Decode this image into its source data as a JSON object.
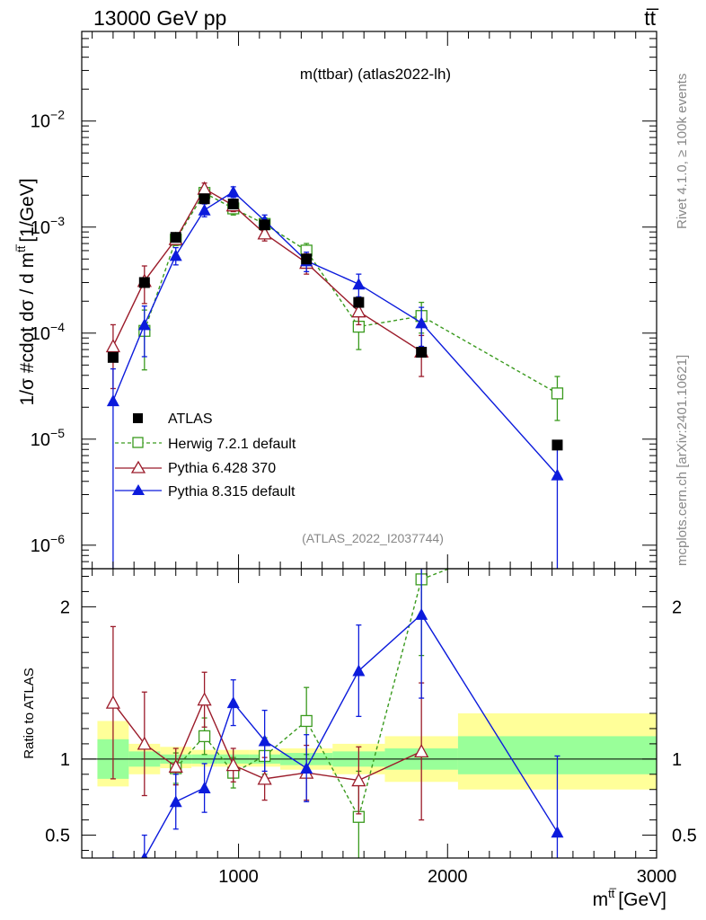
{
  "header": {
    "energy_label": "13000 GeV pp",
    "process_label": "tt̅"
  },
  "side_text": {
    "rivet": "Rivet 4.1.0, ≥ 100k events",
    "mcplots": "mcplots.cern.ch [arXiv:2401.10621]"
  },
  "chart_data": {
    "type": "line",
    "title": "m(ttbar) (atlas2022-lh)",
    "watermark": "(ATLAS_2022_I2037744)",
    "xlabel": "m",
    "xlabel_sup": "tt̅",
    "xlabel_unit": "[GeV]",
    "ylabel": "1/σ #cdot dσ / d m",
    "ylabel_sup": "tt̅",
    "ylabel_unit": "[1/GeV]",
    "ratio_ylabel": "Ratio to ATLAS",
    "xlim": [
      250,
      3000
    ],
    "ylim": [
      6e-07,
      0.07
    ],
    "ratio_ylim": [
      0.35,
      2.25
    ],
    "x_ticks": [
      1000,
      2000,
      3000
    ],
    "x_tick_labels": [
      "1000",
      "2000",
      "3000"
    ],
    "y_ticks": [
      1e-06,
      1e-05,
      0.0001,
      0.001,
      0.01
    ],
    "y_tick_mantissa": [
      "10",
      "10",
      "10",
      "10",
      "10"
    ],
    "y_tick_exponent": [
      "−6",
      "−5",
      "−4",
      "−3",
      "−2"
    ],
    "ratio_ticks": [
      0.5,
      1,
      2
    ],
    "ratio_tick_labels": [
      "0.5",
      "1",
      "2"
    ],
    "bins": [
      [
        325,
        475
      ],
      [
        475,
        625
      ],
      [
        625,
        775
      ],
      [
        775,
        900
      ],
      [
        900,
        1050
      ],
      [
        1050,
        1200
      ],
      [
        1200,
        1450
      ],
      [
        1450,
        1700
      ],
      [
        1700,
        2050
      ],
      [
        2050,
        3000
      ]
    ],
    "x": [
      400,
      550,
      700,
      837,
      975,
      1125,
      1325,
      1575,
      1875,
      2525
    ],
    "band_inner": [
      [
        0.87,
        1.13
      ],
      [
        0.95,
        1.05
      ],
      [
        0.97,
        1.03
      ],
      [
        0.97,
        1.03
      ],
      [
        0.97,
        1.03
      ],
      [
        0.97,
        1.03
      ],
      [
        0.96,
        1.04
      ],
      [
        0.95,
        1.05
      ],
      [
        0.93,
        1.07
      ],
      [
        0.9,
        1.15
      ]
    ],
    "band_outer": [
      [
        0.82,
        1.25
      ],
      [
        0.9,
        1.1
      ],
      [
        0.94,
        1.08
      ],
      [
        0.95,
        1.06
      ],
      [
        0.95,
        1.06
      ],
      [
        0.95,
        1.06
      ],
      [
        0.93,
        1.07
      ],
      [
        0.9,
        1.1
      ],
      [
        0.85,
        1.15
      ],
      [
        0.8,
        1.3
      ]
    ],
    "series": [
      {
        "name": "ATLAS",
        "color": "#000000",
        "marker": "square-filled",
        "style": "none",
        "values": [
          5.9e-05,
          0.0003,
          0.0008,
          0.00185,
          0.00165,
          0.00105,
          0.0005,
          0.000195,
          6.6e-05,
          8.8e-06
        ]
      },
      {
        "name": "Herwig 7.2.1 default",
        "color": "#3a9a1e",
        "marker": "square-open",
        "style": "dashed",
        "values": [
          null,
          0.000105,
          0.00076,
          0.0021,
          0.0015,
          0.00107,
          0.0006,
          0.000115,
          0.000145,
          2.7e-05
        ],
        "err_lo": [
          null,
          6e-05,
          9e-05,
          0.00025,
          0.0002,
          0.00015,
          0.0001,
          4.5e-05,
          4.5e-05,
          1.2e-05
        ],
        "err_hi": [
          null,
          6e-05,
          9e-05,
          0.00025,
          0.0002,
          0.00015,
          0.0001,
          4.5e-05,
          5e-05,
          1.2e-05
        ],
        "ratio": [
          null,
          null,
          0.94,
          1.15,
          0.91,
          1.02,
          1.25,
          0.62,
          2.18,
          null
        ],
        "ratio_err": [
          null,
          null,
          0.1,
          0.12,
          0.1,
          0.12,
          0.22,
          0.3,
          0.5,
          null
        ]
      },
      {
        "name": "Pythia 6.428 370",
        "color": "#9b1b2a",
        "marker": "triangle-open",
        "style": "solid",
        "values": [
          7.5e-05,
          0.00031,
          0.00077,
          0.0023,
          0.0016,
          0.00087,
          0.00046,
          0.00016,
          6.7e-05,
          null
        ],
        "err_lo": [
          4.5e-05,
          0.00012,
          8e-05,
          0.0003,
          0.0002,
          0.00013,
          0.0001,
          4e-05,
          2.8e-05,
          null
        ],
        "err_hi": [
          4.5e-05,
          0.00012,
          8e-05,
          0.0003,
          0.0002,
          0.00013,
          0.0001,
          4e-05,
          2.8e-05,
          null
        ],
        "ratio": [
          1.37,
          1.1,
          0.95,
          1.39,
          0.96,
          0.87,
          0.91,
          0.86,
          1.05,
          null
        ],
        "ratio_err": [
          0.5,
          0.34,
          0.12,
          0.18,
          0.11,
          0.14,
          0.18,
          0.22,
          0.45,
          null
        ]
      },
      {
        "name": "Pythia 8.315 default",
        "color": "#0c1bdc",
        "marker": "triangle-filled",
        "style": "solid",
        "values": [
          2.3e-05,
          0.00012,
          0.00054,
          0.00145,
          0.00215,
          0.00115,
          0.00048,
          0.00029,
          0.000125,
          4.6e-06
        ],
        "err_lo": [
          2.3e-05,
          6e-05,
          0.0001,
          0.0002,
          0.00025,
          0.00015,
          0.0001,
          7e-05,
          5e-05,
          4.6e-06
        ],
        "err_hi": [
          2.3e-05,
          6e-05,
          0.0001,
          0.0002,
          0.00025,
          0.00015,
          0.0001,
          7e-05,
          5e-05,
          4.6e-06
        ],
        "ratio": [
          0.25,
          0.35,
          0.72,
          0.81,
          1.37,
          1.12,
          0.94,
          1.58,
          1.95,
          0.52
        ],
        "ratio_err": [
          0.1,
          0.15,
          0.18,
          0.16,
          0.15,
          0.2,
          0.22,
          0.3,
          0.55,
          0.5
        ]
      }
    ]
  }
}
